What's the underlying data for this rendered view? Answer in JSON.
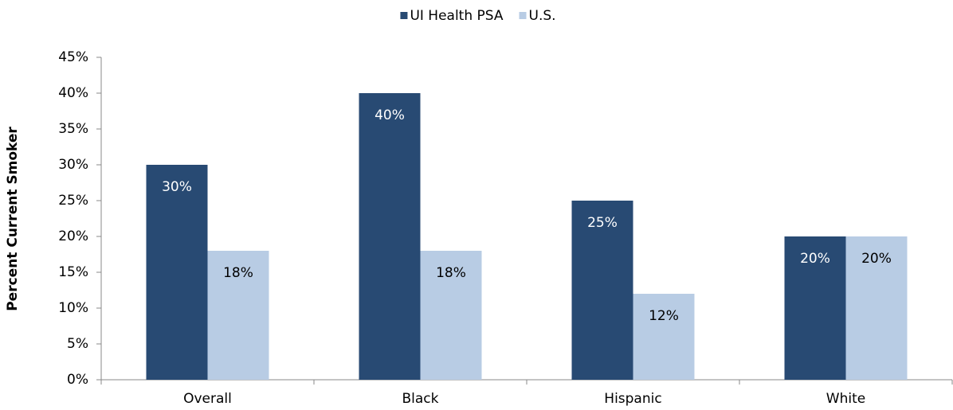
{
  "chart_data": {
    "type": "bar",
    "y_label": "Percent Current Smoker",
    "categories": [
      "Overall",
      "Black",
      "Hispanic",
      "White"
    ],
    "series": [
      {
        "name": "UI Health PSA",
        "color": "#284a73",
        "values": [
          30,
          40,
          25,
          20
        ],
        "value_labels": [
          "30%",
          "40%",
          "25%",
          "20%"
        ]
      },
      {
        "name": "U.S.",
        "color": "#b8cce4",
        "values": [
          18,
          18,
          12,
          20
        ],
        "value_labels": [
          "18%",
          "18%",
          "12%",
          "20%"
        ]
      }
    ],
    "ylim": [
      0,
      45
    ],
    "yticks": [
      {
        "value": 0,
        "label": "0%"
      },
      {
        "value": 5,
        "label": "5%"
      },
      {
        "value": 10,
        "label": "10%"
      },
      {
        "value": 15,
        "label": "15%"
      },
      {
        "value": 20,
        "label": "20%"
      },
      {
        "value": 25,
        "label": "25%"
      },
      {
        "value": 30,
        "label": "30%"
      },
      {
        "value": 35,
        "label": "35%"
      },
      {
        "value": 40,
        "label": "40%"
      },
      {
        "value": 45,
        "label": "45%"
      }
    ],
    "legend": "top",
    "grid": false
  }
}
